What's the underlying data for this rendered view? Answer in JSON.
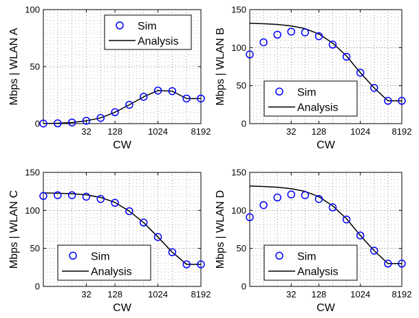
{
  "chart_data": [
    {
      "type": "line",
      "xlabel": "CW",
      "ylabel": "Mbps | WLAN A",
      "x_scale": "log2",
      "x_ticks": [
        32,
        128,
        1024,
        8192
      ],
      "x_tick_labels": [
        "32",
        "128",
        "1024",
        "8192"
      ],
      "xlim": [
        4,
        8192
      ],
      "ylim": [
        0,
        100
      ],
      "y_ticks": [
        0,
        50,
        100
      ],
      "grid": true,
      "legend_position": "top-right",
      "series": [
        {
          "name": "Sim",
          "marker": "circle",
          "x": [
            4,
            8,
            16,
            32,
            64,
            128,
            256,
            512,
            1024,
            2048,
            4096,
            8192
          ],
          "values": [
            0.1,
            0.3,
            1,
            2.5,
            5,
            10,
            16.5,
            23.5,
            29,
            28.5,
            22,
            22
          ]
        },
        {
          "name": "Analysis",
          "marker": "none",
          "x": [
            4,
            8,
            16,
            32,
            64,
            128,
            256,
            512,
            1024,
            2048,
            4096,
            8192
          ],
          "values": [
            0.1,
            0.3,
            1,
            2.5,
            5,
            10,
            16.5,
            23.5,
            29,
            28.5,
            22,
            22
          ]
        }
      ]
    },
    {
      "type": "line",
      "xlabel": "CW",
      "ylabel": "Mbps | WLAN B",
      "x_scale": "log2",
      "x_ticks": [
        32,
        128,
        1024,
        8192
      ],
      "x_tick_labels": [
        "32",
        "128",
        "1024",
        "8192"
      ],
      "xlim": [
        4,
        8192
      ],
      "ylim": [
        0,
        150
      ],
      "y_ticks": [
        0,
        50,
        100,
        150
      ],
      "grid": true,
      "legend_position": "bottom-right",
      "series": [
        {
          "name": "Sim",
          "marker": "circle",
          "x": [
            4,
            8,
            16,
            32,
            64,
            128,
            256,
            512,
            1024,
            2048,
            4096,
            8192
          ],
          "values": [
            91,
            107,
            117,
            121,
            120,
            115,
            104,
            88,
            67,
            47,
            30,
            30
          ]
        },
        {
          "name": "Analysis",
          "marker": "none",
          "x": [
            4,
            8,
            16,
            32,
            64,
            128,
            256,
            512,
            1024,
            2048,
            4096,
            8192
          ],
          "values": [
            132,
            131.5,
            130.5,
            128.5,
            125,
            118,
            106,
            89,
            67,
            47,
            30,
            30
          ]
        }
      ]
    },
    {
      "type": "line",
      "xlabel": "CW",
      "ylabel": "Mbps | WLAN C",
      "x_scale": "log2",
      "x_ticks": [
        32,
        128,
        1024,
        8192
      ],
      "x_tick_labels": [
        "32",
        "128",
        "1024",
        "8192"
      ],
      "xlim": [
        4,
        8192
      ],
      "ylim": [
        0,
        150
      ],
      "y_ticks": [
        0,
        50,
        100,
        150
      ],
      "grid": true,
      "legend_position": "bottom-left",
      "series": [
        {
          "name": "Sim",
          "marker": "circle",
          "x": [
            4,
            8,
            16,
            32,
            64,
            128,
            256,
            512,
            1024,
            2048,
            4096,
            8192
          ],
          "values": [
            119,
            120,
            120,
            118,
            115,
            110,
            99,
            84,
            65,
            45,
            29,
            29
          ]
        },
        {
          "name": "Analysis",
          "marker": "none",
          "x": [
            4,
            8,
            16,
            32,
            64,
            128,
            256,
            512,
            1024,
            2048,
            4096,
            8192
          ],
          "values": [
            123,
            122.5,
            122,
            120.5,
            117,
            110.5,
            99,
            84,
            65,
            45,
            29,
            29
          ]
        }
      ]
    },
    {
      "type": "line",
      "xlabel": "CW",
      "ylabel": "Mbps | WLAN D",
      "x_scale": "log2",
      "x_ticks": [
        32,
        128,
        1024,
        8192
      ],
      "x_tick_labels": [
        "32",
        "128",
        "1024",
        "8192"
      ],
      "xlim": [
        4,
        8192
      ],
      "ylim": [
        0,
        150
      ],
      "y_ticks": [
        0,
        50,
        100,
        150
      ],
      "grid": true,
      "legend_position": "bottom-right",
      "series": [
        {
          "name": "Sim",
          "marker": "circle",
          "x": [
            4,
            8,
            16,
            32,
            64,
            128,
            256,
            512,
            1024,
            2048,
            4096,
            8192
          ],
          "values": [
            91,
            107,
            117,
            121,
            120,
            115,
            104,
            88,
            67,
            47,
            30,
            30
          ]
        },
        {
          "name": "Analysis",
          "marker": "none",
          "x": [
            4,
            8,
            16,
            32,
            64,
            128,
            256,
            512,
            1024,
            2048,
            4096,
            8192
          ],
          "values": [
            132,
            131.5,
            130.5,
            128.5,
            125,
            118,
            106,
            89,
            67,
            47,
            30,
            30
          ]
        }
      ]
    }
  ],
  "colors": {
    "sim": "#0000ff",
    "analysis": "#000000",
    "grid": "#666666",
    "axes": "#000000"
  }
}
